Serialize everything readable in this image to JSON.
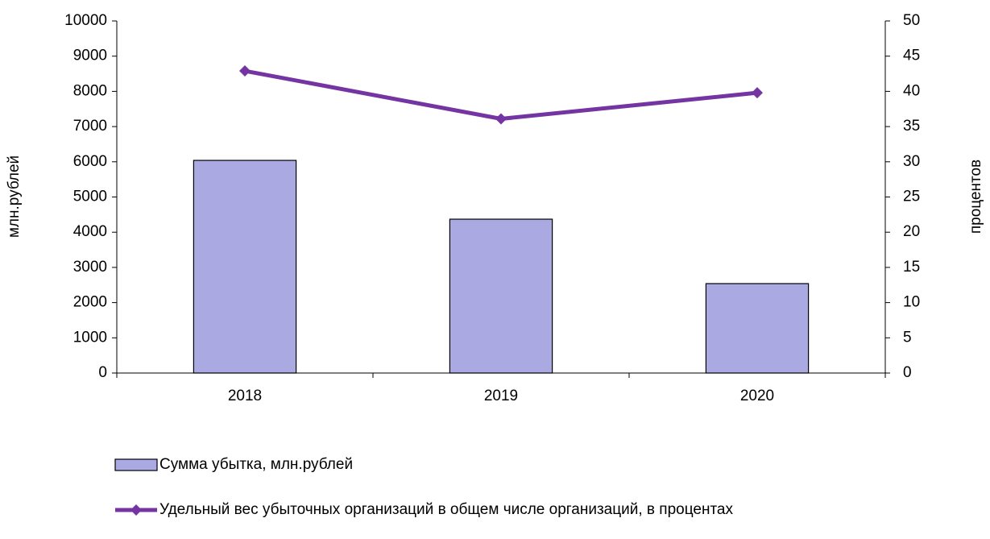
{
  "chart_data": {
    "type": "bar_line",
    "categories": [
      "2018",
      "2019",
      "2020"
    ],
    "series": [
      {
        "name": "Сумма убытка, млн.рублей",
        "type": "bar",
        "color": "#aaa9e2",
        "values": [
          6040,
          4370,
          2540
        ]
      },
      {
        "name": "Удельный вес убыточных организаций в общем числе организаций, в процентах",
        "type": "line",
        "axis": "y2",
        "color": "#7435a3",
        "values": [
          42.9,
          36.1,
          39.8
        ]
      }
    ],
    "ylabel": "млн.рублей",
    "y2label": "процентов",
    "ylim": [
      0,
      10000
    ],
    "yticks": [
      0,
      1000,
      2000,
      3000,
      4000,
      5000,
      6000,
      7000,
      8000,
      9000,
      10000
    ],
    "y2lim": [
      0,
      50
    ],
    "y2ticks": [
      0,
      5,
      10,
      15,
      20,
      25,
      30,
      35,
      40,
      45,
      50
    ],
    "legend": "bottom"
  }
}
